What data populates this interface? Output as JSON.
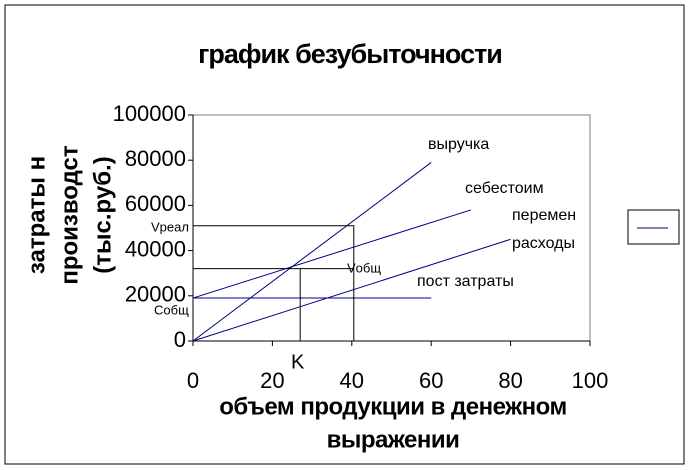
{
  "chart_data": {
    "type": "line",
    "title": "график безубыточности",
    "ylabel": [
      "затраты н",
      "производст",
      "(тыс.руб.)"
    ],
    "xlabel": [
      "объем продукции в денежном",
      "выражении"
    ],
    "xlim": [
      0,
      100
    ],
    "xticks": [
      0,
      20,
      40,
      60,
      80,
      100
    ],
    "ylim": [
      0,
      100000
    ],
    "yticks": [
      0,
      20000,
      40000,
      60000,
      80000,
      100000
    ],
    "series": [
      {
        "color": "#000080",
        "x": [
          0,
          60
        ],
        "values": [
          0,
          79000
        ]
      },
      {
        "color": "#000080",
        "x": [
          0,
          70
        ],
        "values": [
          19000,
          58000
        ]
      },
      {
        "color": "#000080",
        "x": [
          0,
          80
        ],
        "values": [
          0,
          45000
        ]
      },
      {
        "color": "#000080",
        "x": [
          0,
          60
        ],
        "values": [
          19000,
          19000
        ]
      },
      {
        "color": "#000000",
        "x": [
          0,
          40.5,
          40.5
        ],
        "values": [
          51000,
          51000,
          0
        ]
      },
      {
        "color": "#000000",
        "x": [
          0,
          40.5
        ],
        "values": [
          32000,
          32000
        ]
      },
      {
        "color": "#000000",
        "x": [
          27,
          27
        ],
        "values": [
          32000,
          0
        ]
      }
    ],
    "annotations": [
      "выручка",
      "себестоим",
      "перемен",
      "расходы",
      "пост затраты",
      "Vреал",
      "Vобщ",
      "Cобщ",
      "K"
    ]
  }
}
